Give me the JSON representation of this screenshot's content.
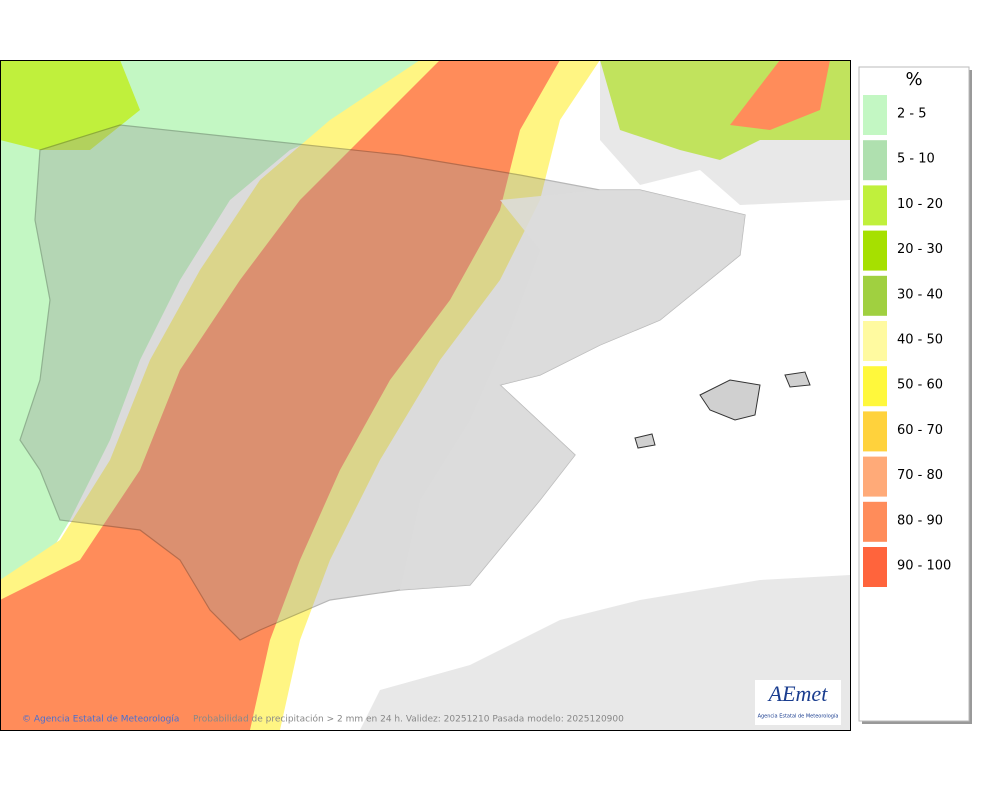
{
  "map": {
    "credit": "© Agencia Estatal de Meteorología",
    "caption": "Probabilidad de precipitación > 2 mm en 24 h. Validez: 20251210 Pasada modelo: 2025120900",
    "logo": {
      "name": "AEmet",
      "subtitle": "Agencia Estatal de Meteorología"
    }
  },
  "legend": {
    "title": "%",
    "items": [
      {
        "label": "2 - 5",
        "color": "#c3f7c3"
      },
      {
        "label": "5 - 10",
        "color": "#afe0af"
      },
      {
        "label": "10 - 20",
        "color": "#c0f03c"
      },
      {
        "label": "20 - 30",
        "color": "#a6e000"
      },
      {
        "label": "30 - 40",
        "color": "#a0d040"
      },
      {
        "label": "40 - 50",
        "color": "#fffaa0"
      },
      {
        "label": "50 - 60",
        "color": "#fff83c"
      },
      {
        "label": "60 - 70",
        "color": "#ffd23c"
      },
      {
        "label": "70 - 80",
        "color": "#ffaa78"
      },
      {
        "label": "80 - 90",
        "color": "#ff8c5a"
      },
      {
        "label": "90 - 100",
        "color": "#ff643c"
      }
    ]
  }
}
